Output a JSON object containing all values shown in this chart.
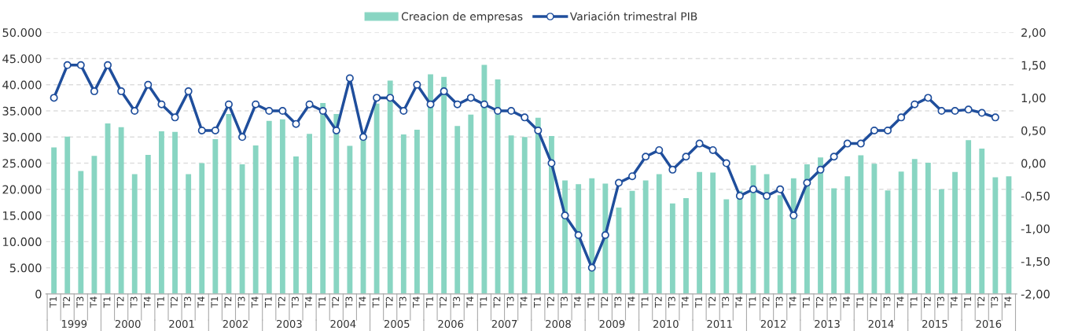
{
  "chart_data": {
    "type": "bar",
    "categories": [
      "T1",
      "T2",
      "T3",
      "T4",
      "T1",
      "T2",
      "T3",
      "T4",
      "T1",
      "T2",
      "T3",
      "T4",
      "T1",
      "T2",
      "T3",
      "T4",
      "T1",
      "T2",
      "T3",
      "T4",
      "T1",
      "T2",
      "T3",
      "T4",
      "T1",
      "T2",
      "T3",
      "T4",
      "T1",
      "T2",
      "T3",
      "T4",
      "T1",
      "T2",
      "T3",
      "T4",
      "T1",
      "T2",
      "T3",
      "T4",
      "T1",
      "T2",
      "T3",
      "T4",
      "T1",
      "T2",
      "T3",
      "T4",
      "T1",
      "T2",
      "T3",
      "T4",
      "T1",
      "T2",
      "T3",
      "T4",
      "T1",
      "T2",
      "T3",
      "T4",
      "T1",
      "T2",
      "T3",
      "T4",
      "T1",
      "T2",
      "T3",
      "T4",
      "T1",
      "T2",
      "T3",
      "T4"
    ],
    "annotations": [
      "1999",
      "2000",
      "2001",
      "2002",
      "2003",
      "2004",
      "2005",
      "2006",
      "2007",
      "2008",
      "2009",
      "2010",
      "2011",
      "2012",
      "2013",
      "2014",
      "2015",
      "2016"
    ],
    "series": [
      {
        "name": "Creacion de empresas",
        "color": "#88d5c2",
        "values": [
          28000,
          30100,
          23500,
          26400,
          32600,
          31900,
          22900,
          26600,
          31100,
          31000,
          22900,
          25000,
          29600,
          34400,
          24800,
          28400,
          33100,
          33400,
          26300,
          30600,
          36500,
          34400,
          28300,
          29800,
          36400,
          40800,
          30500,
          31400,
          42000,
          41500,
          32100,
          34300,
          43800,
          41000,
          30300,
          30000,
          33700,
          30200,
          21700,
          21000,
          22100,
          21100,
          16500,
          19700,
          21700,
          22900,
          17300,
          18300,
          23300,
          23200,
          18100,
          19700,
          24600,
          22900,
          18900,
          22100,
          24800,
          26100,
          20200,
          22500,
          26500,
          24900,
          19800,
          23400,
          25800,
          25100,
          20000,
          23300,
          29400,
          27800,
          22300,
          22500
        ]
      },
      {
        "name": "Variación trimestral PIB",
        "type": "line",
        "axis": "y2",
        "color": "#1f4e9c",
        "marker": "circle",
        "values": [
          1.0,
          1.5,
          1.5,
          1.1,
          1.5,
          1.1,
          0.8,
          1.2,
          0.9,
          0.7,
          1.1,
          0.5,
          0.5,
          0.9,
          0.4,
          0.9,
          0.8,
          0.8,
          0.6,
          0.9,
          0.8,
          0.5,
          1.3,
          0.4,
          1.0,
          1.0,
          0.8,
          1.2,
          0.9,
          1.1,
          0.9,
          1.0,
          0.9,
          0.8,
          0.8,
          0.7,
          0.5,
          0.0,
          -0.8,
          -1.1,
          -1.6,
          -1.1,
          -0.3,
          -0.2,
          0.1,
          0.2,
          -0.1,
          0.1,
          0.3,
          0.2,
          0.0,
          -0.5,
          -0.4,
          -0.5,
          -0.4,
          -0.8,
          -0.3,
          -0.1,
          0.1,
          0.3,
          0.3,
          0.5,
          0.5,
          0.7,
          0.9,
          1.0,
          0.8,
          0.8,
          0.82,
          0.77,
          0.7,
          null
        ]
      }
    ],
    "ylim": [
      0,
      50000
    ],
    "yticks": [
      {
        "value": 0,
        "label": "0"
      },
      {
        "value": 5000,
        "label": "5.000"
      },
      {
        "value": 10000,
        "label": "10.000"
      },
      {
        "value": 15000,
        "label": "15.000"
      },
      {
        "value": 20000,
        "label": "20.000"
      },
      {
        "value": 25000,
        "label": "25.000"
      },
      {
        "value": 30000,
        "label": "30.000"
      },
      {
        "value": 35000,
        "label": "35.000"
      },
      {
        "value": 40000,
        "label": "40.000"
      },
      {
        "value": 45000,
        "label": "45.000"
      },
      {
        "value": 50000,
        "label": "50.000"
      }
    ],
    "y2lim": [
      -2,
      2
    ],
    "y2ticks": [
      {
        "value": -2,
        "label": "-2,00"
      },
      {
        "value": -1.5,
        "label": "-1,50"
      },
      {
        "value": -1,
        "label": "-1,00"
      },
      {
        "value": -0.5,
        "label": "-0,50"
      },
      {
        "value": 0,
        "label": "0,00"
      },
      {
        "value": 0.5,
        "label": "0,50"
      },
      {
        "value": 1,
        "label": "1,00"
      },
      {
        "value": 1.5,
        "label": "1,50"
      },
      {
        "value": 2,
        "label": "2,00"
      }
    ],
    "grid": "y",
    "legend": "top"
  }
}
